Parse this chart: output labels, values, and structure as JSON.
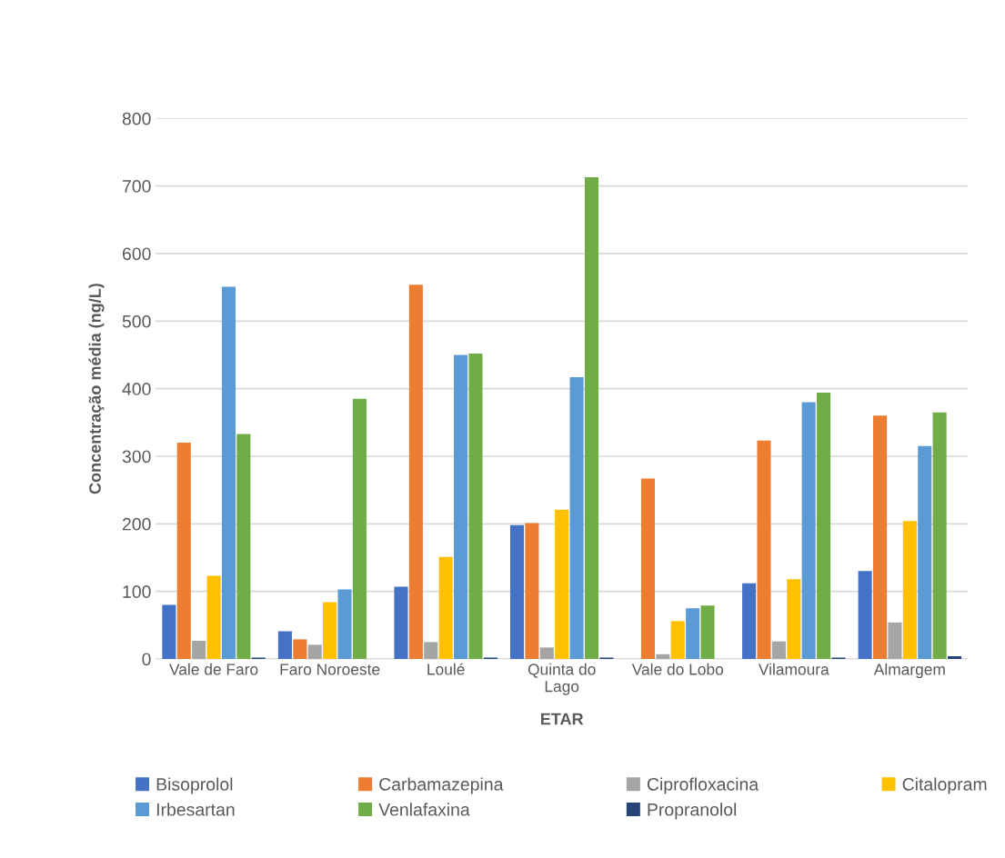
{
  "chart_data": {
    "type": "bar",
    "xlabel": "ETAR",
    "ylabel": "Concentração média (ng/L)",
    "categories": [
      "Vale de Faro",
      "Faro Noroeste",
      "Loulé",
      "Quinta do Lago",
      "Vale do Lobo",
      "Vilamoura",
      "Almargem"
    ],
    "series": [
      {
        "name": "Bisoprolol",
        "color": "#4472c4",
        "values": [
          80,
          41,
          107,
          198,
          null,
          112,
          130
        ]
      },
      {
        "name": "Carbamazepina",
        "color": "#ed7d31",
        "values": [
          320,
          29,
          554,
          201,
          267,
          323,
          360
        ]
      },
      {
        "name": "Ciprofloxacina",
        "color": "#a5a5a5",
        "values": [
          27,
          21,
          25,
          17,
          7,
          26,
          54
        ]
      },
      {
        "name": "Citalopram",
        "color": "#ffc000",
        "values": [
          123,
          84,
          151,
          221,
          56,
          118,
          204
        ]
      },
      {
        "name": "Irbesartan",
        "color": "#5b9bd5",
        "values": [
          551,
          103,
          450,
          417,
          75,
          380,
          315
        ]
      },
      {
        "name": "Venlafaxina",
        "color": "#70ad47",
        "values": [
          333,
          385,
          452,
          713,
          79,
          394,
          365
        ]
      },
      {
        "name": "Propranolol",
        "color": "#264478",
        "values": [
          2,
          null,
          2,
          2,
          null,
          2,
          4
        ]
      }
    ],
    "ylim": [
      0,
      800
    ],
    "yticks": [
      0,
      100,
      200,
      300,
      400,
      500,
      600,
      700,
      800
    ],
    "grid": "y",
    "legend": "bottom"
  }
}
